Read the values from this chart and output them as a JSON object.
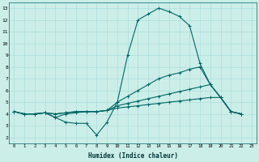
{
  "title": "",
  "xlabel": "Humidex (Indice chaleur)",
  "ylabel": "",
  "bg_color": "#cceee8",
  "grid_color": "#aadddd",
  "line_color": "#006666",
  "xlim": [
    -0.5,
    23.5
  ],
  "ylim": [
    1.5,
    13.5
  ],
  "xticks": [
    0,
    1,
    2,
    3,
    4,
    5,
    6,
    7,
    8,
    9,
    10,
    11,
    12,
    13,
    14,
    15,
    16,
    17,
    18,
    19,
    20,
    21,
    22,
    23
  ],
  "yticks": [
    2,
    3,
    4,
    5,
    6,
    7,
    8,
    9,
    10,
    11,
    12,
    13
  ],
  "series": [
    [
      4.2,
      4.0,
      4.0,
      4.1,
      3.7,
      3.3,
      3.2,
      3.2,
      2.2,
      3.3,
      5.0,
      9.0,
      12.0,
      12.5,
      13.0,
      12.7,
      12.3,
      11.5,
      8.3,
      6.5,
      5.4,
      4.2,
      4.0
    ],
    [
      4.2,
      4.0,
      4.0,
      4.1,
      3.7,
      4.0,
      4.1,
      4.2,
      4.2,
      4.3,
      5.0,
      5.5,
      6.0,
      6.5,
      7.0,
      7.3,
      7.5,
      7.8,
      8.0,
      6.5,
      5.4,
      4.2,
      4.0
    ],
    [
      4.2,
      4.0,
      4.0,
      4.1,
      4.0,
      4.1,
      4.2,
      4.2,
      4.2,
      4.3,
      4.7,
      4.9,
      5.1,
      5.3,
      5.5,
      5.7,
      5.9,
      6.1,
      6.3,
      6.5,
      5.4,
      4.2,
      4.0
    ],
    [
      4.2,
      4.0,
      4.0,
      4.1,
      4.0,
      4.1,
      4.2,
      4.2,
      4.2,
      4.3,
      4.5,
      4.6,
      4.7,
      4.8,
      4.9,
      5.0,
      5.1,
      5.2,
      5.3,
      5.4,
      5.4,
      4.2,
      4.0
    ]
  ],
  "x_series": [
    0,
    1,
    2,
    3,
    4,
    5,
    6,
    7,
    8,
    9,
    10,
    11,
    12,
    13,
    14,
    15,
    16,
    17,
    18,
    19,
    20,
    21,
    22
  ]
}
